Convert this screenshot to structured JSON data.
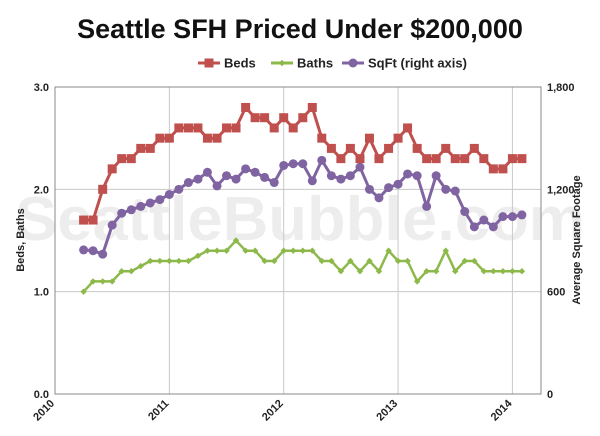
{
  "chart_data": {
    "type": "line",
    "title": "Seattle SFH Priced Under $200,000",
    "watermark": "SeattleBubble.com",
    "ylabel": "Beds, Baths",
    "y2label": "Average Square Footage",
    "xlim": [
      2010.0,
      2014.25
    ],
    "ylim": [
      0,
      3
    ],
    "y2lim": [
      0,
      1800
    ],
    "x_ticks": [
      "2010",
      "2011",
      "2012",
      "2013",
      "2014"
    ],
    "y_ticks": [
      "0.0",
      "1.0",
      "2.0",
      "3.0"
    ],
    "y2_ticks": [
      "0",
      "600",
      "1,200",
      "1,800"
    ],
    "x_tick_values": [
      2010,
      2011,
      2012,
      2013,
      2014
    ],
    "y_tick_values": [
      0,
      1,
      2,
      3
    ],
    "y2_tick_values": [
      0,
      600,
      1200,
      1800
    ],
    "grid": true,
    "legend_position": "top",
    "series": [
      {
        "name": "Beds",
        "axis": "left",
        "marker": "square",
        "color": "#c0504d",
        "x": [
          2010.25,
          2010.333,
          2010.417,
          2010.5,
          2010.583,
          2010.667,
          2010.75,
          2010.833,
          2010.917,
          2011.0,
          2011.083,
          2011.167,
          2011.25,
          2011.333,
          2011.417,
          2011.5,
          2011.583,
          2011.667,
          2011.75,
          2011.833,
          2011.917,
          2012.0,
          2012.083,
          2012.167,
          2012.25,
          2012.333,
          2012.417,
          2012.5,
          2012.583,
          2012.667,
          2012.75,
          2012.833,
          2012.917,
          2013.0,
          2013.083,
          2013.167,
          2013.25,
          2013.333,
          2013.417,
          2013.5,
          2013.583,
          2013.667,
          2013.75,
          2013.833,
          2013.917,
          2014.0,
          2014.083
        ],
        "values": [
          1.7,
          1.7,
          2.0,
          2.2,
          2.3,
          2.3,
          2.4,
          2.4,
          2.5,
          2.5,
          2.6,
          2.6,
          2.6,
          2.5,
          2.5,
          2.6,
          2.6,
          2.8,
          2.7,
          2.7,
          2.6,
          2.7,
          2.6,
          2.7,
          2.8,
          2.5,
          2.4,
          2.3,
          2.4,
          2.3,
          2.5,
          2.3,
          2.4,
          2.5,
          2.6,
          2.4,
          2.3,
          2.3,
          2.4,
          2.3,
          2.3,
          2.4,
          2.3,
          2.2,
          2.2,
          2.3,
          2.3
        ]
      },
      {
        "name": "Baths",
        "axis": "left",
        "marker": "diamond",
        "color": "#8db84a",
        "x": [
          2010.25,
          2010.333,
          2010.417,
          2010.5,
          2010.583,
          2010.667,
          2010.75,
          2010.833,
          2010.917,
          2011.0,
          2011.083,
          2011.167,
          2011.25,
          2011.333,
          2011.417,
          2011.5,
          2011.583,
          2011.667,
          2011.75,
          2011.833,
          2011.917,
          2012.0,
          2012.083,
          2012.167,
          2012.25,
          2012.333,
          2012.417,
          2012.5,
          2012.583,
          2012.667,
          2012.75,
          2012.833,
          2012.917,
          2013.0,
          2013.083,
          2013.167,
          2013.25,
          2013.333,
          2013.417,
          2013.5,
          2013.583,
          2013.667,
          2013.75,
          2013.833,
          2013.917,
          2014.0,
          2014.083
        ],
        "values": [
          1.0,
          1.1,
          1.1,
          1.1,
          1.2,
          1.2,
          1.25,
          1.3,
          1.3,
          1.3,
          1.3,
          1.3,
          1.35,
          1.4,
          1.4,
          1.4,
          1.5,
          1.4,
          1.4,
          1.3,
          1.3,
          1.4,
          1.4,
          1.4,
          1.4,
          1.3,
          1.3,
          1.2,
          1.3,
          1.2,
          1.3,
          1.2,
          1.4,
          1.3,
          1.3,
          1.1,
          1.2,
          1.2,
          1.4,
          1.2,
          1.3,
          1.3,
          1.2,
          1.2,
          1.2,
          1.2,
          1.2
        ]
      },
      {
        "name": "SqFt (right axis)",
        "axis": "right",
        "marker": "circle",
        "color": "#8064a2",
        "x": [
          2010.25,
          2010.333,
          2010.417,
          2010.5,
          2010.583,
          2010.667,
          2010.75,
          2010.833,
          2010.917,
          2011.0,
          2011.083,
          2011.167,
          2011.25,
          2011.333,
          2011.417,
          2011.5,
          2011.583,
          2011.667,
          2011.75,
          2011.833,
          2011.917,
          2012.0,
          2012.083,
          2012.167,
          2012.25,
          2012.333,
          2012.417,
          2012.5,
          2012.583,
          2012.667,
          2012.75,
          2012.833,
          2012.917,
          2013.0,
          2013.083,
          2013.167,
          2013.25,
          2013.333,
          2013.417,
          2013.5,
          2013.583,
          2013.667,
          2013.75,
          2013.833,
          2013.917,
          2014.0,
          2014.083
        ],
        "values": [
          845,
          840,
          820,
          990,
          1060,
          1080,
          1100,
          1120,
          1140,
          1170,
          1200,
          1240,
          1260,
          1300,
          1220,
          1280,
          1260,
          1320,
          1300,
          1270,
          1240,
          1340,
          1350,
          1350,
          1250,
          1370,
          1280,
          1260,
          1280,
          1330,
          1200,
          1150,
          1210,
          1230,
          1290,
          1280,
          1100,
          1280,
          1200,
          1190,
          1070,
          980,
          1020,
          980,
          1040,
          1040,
          1050
        ]
      }
    ]
  }
}
